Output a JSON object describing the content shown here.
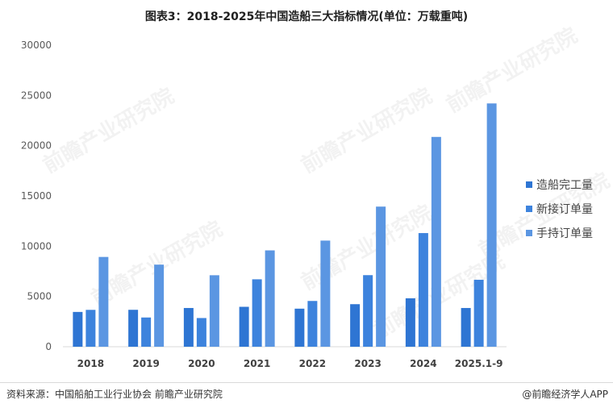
{
  "title": "图表3：2018-2025年中国造船三大指标情况(单位：万载重吨)",
  "chart_data": {
    "type": "bar",
    "categories": [
      "2018",
      "2019",
      "2020",
      "2021",
      "2022",
      "2023",
      "2024",
      "2025.1-9"
    ],
    "series": [
      {
        "name": "造船完工量",
        "values": [
          3460,
          3672,
          3853,
          3970,
          3786,
          4232,
          4818,
          3853
        ],
        "color": "#2e75d3"
      },
      {
        "name": "新接订单量",
        "values": [
          3667,
          2907,
          2853,
          6707,
          4552,
          7120,
          11305,
          6661
        ],
        "color": "#3d83dd"
      },
      {
        "name": "手持订单量",
        "values": [
          8931,
          8166,
          7111,
          9584,
          10557,
          13939,
          20872,
          24203
        ],
        "color": "#5b96e2"
      }
    ],
    "yticks": [
      "0",
      "5000",
      "10000",
      "15000",
      "20000",
      "25000",
      "30000"
    ],
    "ylim": [
      0,
      30000
    ],
    "legend_position": "right",
    "grid": false
  },
  "watermark": "前瞻产业研究院",
  "footer": {
    "source": "资料来源：中国船舶工业行业协会 前瞻产业研究院",
    "brand": "@前瞻经济学人APP"
  }
}
